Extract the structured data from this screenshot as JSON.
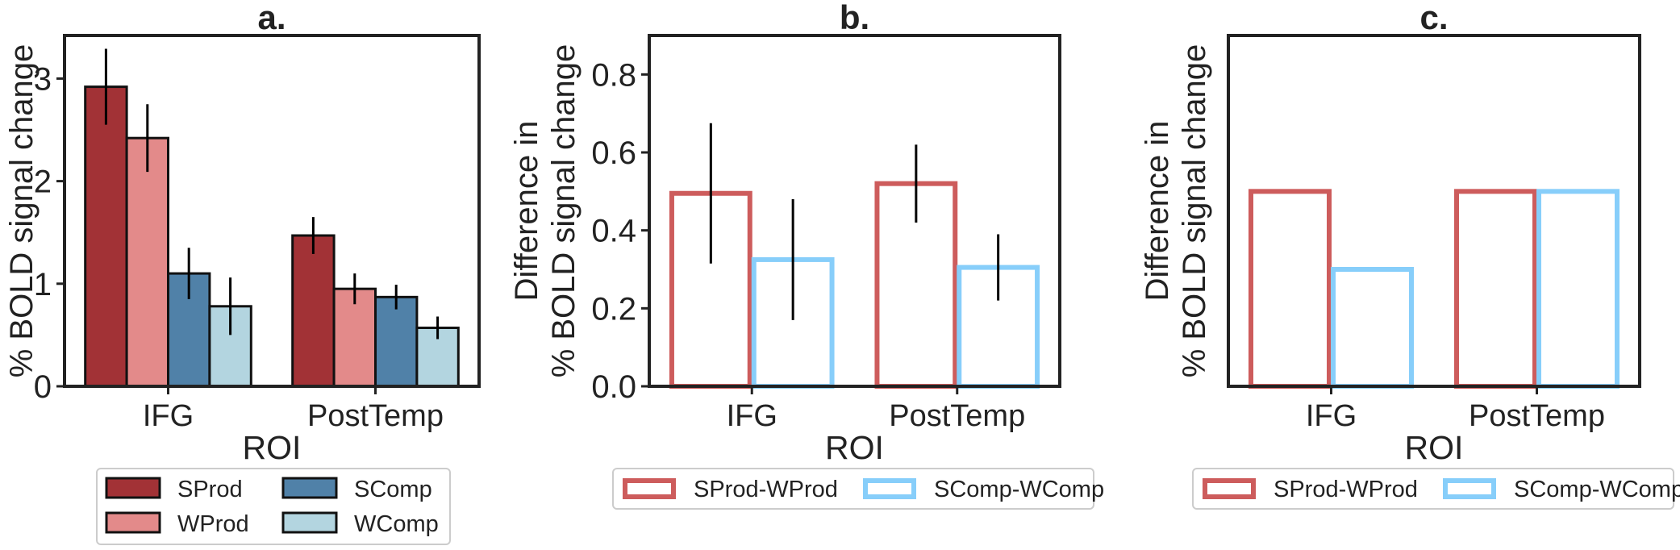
{
  "chart_data": [
    {
      "panel_label": "a.",
      "type": "bar",
      "categories": [
        "IFG",
        "PostTemp"
      ],
      "xlabel": "ROI",
      "ylabel": "% BOLD signal change",
      "ylim": [
        0,
        3.42
      ],
      "yticks": [
        0,
        1,
        2,
        3
      ],
      "bar_style": "filled",
      "series": [
        {
          "name": "SProd",
          "color": "#a23236",
          "values": [
            2.92,
            1.47
          ],
          "err": [
            0.37,
            0.18
          ]
        },
        {
          "name": "WProd",
          "color": "#e38a8a",
          "values": [
            2.42,
            0.95
          ],
          "err": [
            0.33,
            0.15
          ]
        },
        {
          "name": "SComp",
          "color": "#5081a8",
          "values": [
            1.1,
            0.87
          ],
          "err": [
            0.25,
            0.12
          ]
        },
        {
          "name": "WComp",
          "color": "#b3d5e0",
          "values": [
            0.78,
            0.57
          ],
          "err": [
            0.28,
            0.11
          ]
        }
      ],
      "legend": {
        "position": "bottom",
        "columns": 2
      }
    },
    {
      "panel_label": "b.",
      "type": "bar",
      "categories": [
        "IFG",
        "PostTemp"
      ],
      "xlabel": "ROI",
      "ylabel_lines": [
        "Difference in",
        "% BOLD signal change"
      ],
      "ylim": [
        0,
        0.9
      ],
      "yticks": [
        0.0,
        0.2,
        0.4,
        0.6,
        0.8
      ],
      "bar_style": "outline",
      "series": [
        {
          "name": "SProd-WProd",
          "color": "#cd5c5c",
          "values": [
            0.495,
            0.52
          ],
          "err": [
            0.18,
            0.1
          ]
        },
        {
          "name": "SComp-WComp",
          "color": "#87cefa",
          "values": [
            0.325,
            0.305
          ],
          "err": [
            0.155,
            0.085
          ]
        }
      ],
      "legend": {
        "position": "bottom",
        "columns": 2
      }
    },
    {
      "panel_label": "c.",
      "type": "bar",
      "categories": [
        "IFG",
        "PostTemp"
      ],
      "xlabel": "ROI",
      "ylabel_lines": [
        "Difference in",
        "% BOLD signal change"
      ],
      "ylim": [
        0,
        0.9
      ],
      "yticks": [],
      "bar_style": "outline",
      "series": [
        {
          "name": "SProd-WProd",
          "color": "#cd5c5c",
          "values": [
            0.5,
            0.5
          ]
        },
        {
          "name": "SComp-WComp",
          "color": "#87cefa",
          "values": [
            0.3,
            0.5
          ]
        }
      ],
      "legend": {
        "position": "bottom",
        "columns": 2
      }
    }
  ]
}
